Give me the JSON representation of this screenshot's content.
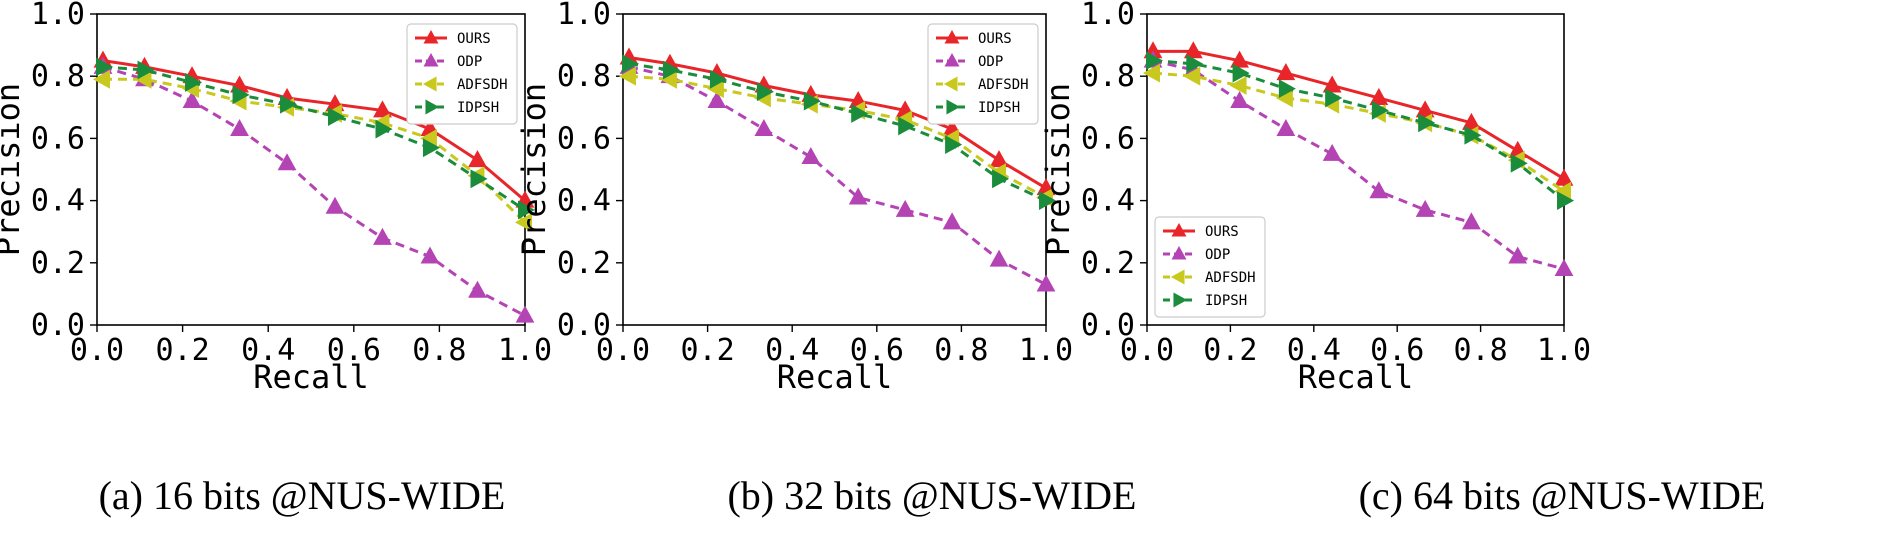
{
  "chart_data": [
    {
      "type": "line",
      "caption": "(a) 16 bits @NUS-WIDE",
      "xlabel": "Recall",
      "ylabel": "Precision",
      "xlim": [
        0.0,
        1.0
      ],
      "ylim": [
        0.0,
        1.0
      ],
      "xticks": [
        "0.0",
        "0.2",
        "0.4",
        "0.6",
        "0.8",
        "1.0"
      ],
      "yticks": [
        "0.0",
        "0.2",
        "0.4",
        "0.6",
        "0.8",
        "1.0"
      ],
      "legend_position": "top-right",
      "x": [
        0.0,
        0.111,
        0.222,
        0.333,
        0.444,
        0.556,
        0.667,
        0.778,
        0.889,
        1.0
      ],
      "series": [
        {
          "name": "OURS",
          "color": "#e8262a",
          "marker": "triangle-up",
          "style": "solid",
          "values": [
            0.85,
            0.83,
            0.8,
            0.77,
            0.73,
            0.71,
            0.69,
            0.63,
            0.53,
            0.4
          ]
        },
        {
          "name": "ODP",
          "color": "#b444b4",
          "marker": "triangle-up",
          "style": "dashed",
          "values": [
            0.83,
            0.79,
            0.72,
            0.63,
            0.52,
            0.38,
            0.28,
            0.22,
            0.11,
            0.03
          ]
        },
        {
          "name": "ADFSDH",
          "color": "#c8c81e",
          "marker": "triangle-left",
          "style": "dashed",
          "values": [
            0.79,
            0.79,
            0.76,
            0.72,
            0.7,
            0.68,
            0.65,
            0.6,
            0.48,
            0.33
          ]
        },
        {
          "name": "IDPSH",
          "color": "#1a8c3c",
          "marker": "triangle-right",
          "style": "dashed",
          "values": [
            0.83,
            0.82,
            0.78,
            0.74,
            0.71,
            0.67,
            0.63,
            0.57,
            0.47,
            0.37
          ]
        }
      ]
    },
    {
      "type": "line",
      "caption": "(b) 32 bits @NUS-WIDE",
      "xlabel": "Recall",
      "ylabel": "Precision",
      "xlim": [
        0.0,
        1.0
      ],
      "ylim": [
        0.0,
        1.0
      ],
      "xticks": [
        "0.0",
        "0.2",
        "0.4",
        "0.6",
        "0.8",
        "1.0"
      ],
      "yticks": [
        "0.0",
        "0.2",
        "0.4",
        "0.6",
        "0.8",
        "1.0"
      ],
      "legend_position": "top-right",
      "x": [
        0.0,
        0.111,
        0.222,
        0.333,
        0.444,
        0.556,
        0.667,
        0.778,
        0.889,
        1.0
      ],
      "series": [
        {
          "name": "OURS",
          "color": "#e8262a",
          "marker": "triangle-up",
          "style": "solid",
          "values": [
            0.86,
            0.84,
            0.81,
            0.77,
            0.74,
            0.72,
            0.69,
            0.63,
            0.53,
            0.44
          ]
        },
        {
          "name": "ODP",
          "color": "#b444b4",
          "marker": "triangle-up",
          "style": "dashed",
          "values": [
            0.83,
            0.8,
            0.72,
            0.63,
            0.54,
            0.41,
            0.37,
            0.33,
            0.21,
            0.13
          ]
        },
        {
          "name": "ADFSDH",
          "color": "#c8c81e",
          "marker": "triangle-left",
          "style": "dashed",
          "values": [
            0.8,
            0.79,
            0.76,
            0.73,
            0.71,
            0.69,
            0.66,
            0.6,
            0.49,
            0.41
          ]
        },
        {
          "name": "IDPSH",
          "color": "#1a8c3c",
          "marker": "triangle-right",
          "style": "dashed",
          "values": [
            0.84,
            0.82,
            0.79,
            0.75,
            0.72,
            0.68,
            0.64,
            0.58,
            0.47,
            0.4
          ]
        }
      ]
    },
    {
      "type": "line",
      "caption": "(c) 64 bits @NUS-WIDE",
      "xlabel": "Recall",
      "ylabel": "Precision",
      "xlim": [
        0.0,
        1.0
      ],
      "ylim": [
        0.0,
        1.0
      ],
      "xticks": [
        "0.0",
        "0.2",
        "0.4",
        "0.6",
        "0.8",
        "1.0"
      ],
      "yticks": [
        "0.0",
        "0.2",
        "0.4",
        "0.6",
        "0.8",
        "1.0"
      ],
      "legend_position": "bottom-left",
      "x": [
        0.0,
        0.111,
        0.222,
        0.333,
        0.444,
        0.556,
        0.667,
        0.778,
        0.889,
        1.0
      ],
      "series": [
        {
          "name": "OURS",
          "color": "#e8262a",
          "marker": "triangle-up",
          "style": "solid",
          "values": [
            0.88,
            0.88,
            0.85,
            0.81,
            0.77,
            0.73,
            0.69,
            0.65,
            0.56,
            0.47
          ]
        },
        {
          "name": "ODP",
          "color": "#b444b4",
          "marker": "triangle-up",
          "style": "dashed",
          "values": [
            0.85,
            0.82,
            0.72,
            0.63,
            0.55,
            0.43,
            0.37,
            0.33,
            0.22,
            0.18
          ]
        },
        {
          "name": "ADFSDH",
          "color": "#c8c81e",
          "marker": "triangle-left",
          "style": "dashed",
          "values": [
            0.81,
            0.8,
            0.77,
            0.73,
            0.71,
            0.68,
            0.65,
            0.61,
            0.53,
            0.43
          ]
        },
        {
          "name": "IDPSH",
          "color": "#1a8c3c",
          "marker": "triangle-right",
          "style": "dashed",
          "values": [
            0.85,
            0.84,
            0.81,
            0.76,
            0.73,
            0.69,
            0.65,
            0.61,
            0.52,
            0.4
          ]
        }
      ]
    }
  ]
}
